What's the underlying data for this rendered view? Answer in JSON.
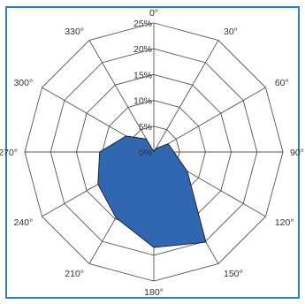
{
  "chart_data": {
    "type": "radar",
    "title": "",
    "angle_labels": [
      "0°",
      "30°",
      "60°",
      "90°",
      "120°",
      "150°",
      "180°",
      "210°",
      "240°",
      "270°",
      "300°",
      "330°"
    ],
    "angles_deg": [
      0,
      30,
      60,
      90,
      120,
      150,
      180,
      210,
      240,
      270,
      300,
      330
    ],
    "radial_ticks": [
      0,
      5,
      10,
      15,
      20,
      25
    ],
    "radial_tick_labels": [
      "0%",
      "5%",
      "10%",
      "15%",
      "20%",
      "25%"
    ],
    "rlim": [
      0,
      25
    ],
    "series": [
      {
        "values": [
          0,
          0.8,
          3.2,
          3.9,
          7.5,
          20.2,
          18.5,
          14.7,
          12.5,
          10.5,
          6.2,
          2.9
        ],
        "color": "#3166b0"
      }
    ],
    "grid": true,
    "legend": "none"
  }
}
